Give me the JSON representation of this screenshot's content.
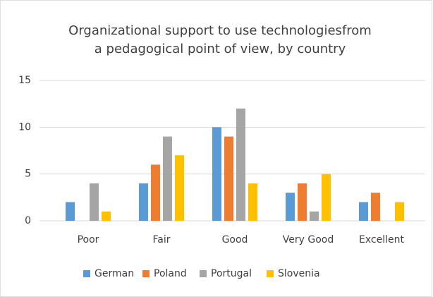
{
  "chart_data": {
    "type": "bar",
    "title": [
      "Organizational support to use technologiesfrom",
      "a pedagogical point of view, by country"
    ],
    "categories": [
      "Poor",
      "Fair",
      "Good",
      "Very Good",
      "Excellent"
    ],
    "series": [
      {
        "name": "German",
        "color": "#5b9bd5",
        "values": [
          2,
          4,
          10,
          3,
          2
        ]
      },
      {
        "name": "Poland",
        "color": "#ed7d31",
        "values": [
          0,
          6,
          9,
          4,
          3
        ]
      },
      {
        "name": "Portugal",
        "color": "#a5a5a5",
        "values": [
          4,
          9,
          12,
          1,
          0
        ]
      },
      {
        "name": "Slovenia",
        "color": "#ffc000",
        "values": [
          1,
          7,
          4,
          5,
          2
        ]
      }
    ],
    "ylim": [
      0,
      15
    ],
    "yticks": [
      0,
      5,
      10,
      15
    ],
    "grid": true,
    "legend": "bottom"
  }
}
